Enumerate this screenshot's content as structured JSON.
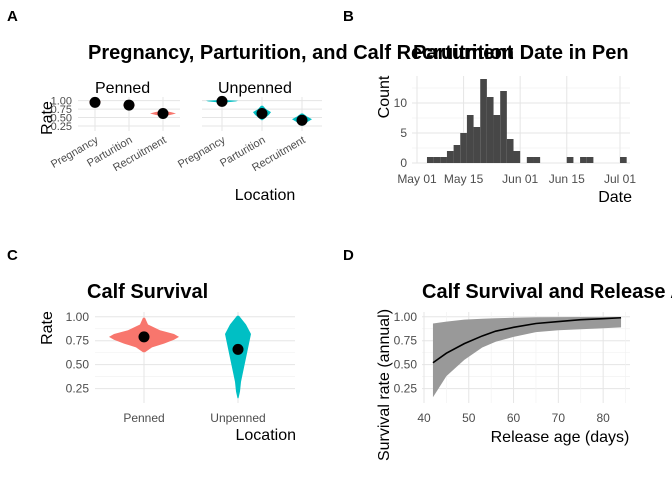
{
  "chart_data": [
    {
      "panel": "A",
      "type": "violin",
      "title": "Pregnancy, Parturition, and Calf Recruitment",
      "xlabel": "Location",
      "ylabel": "Rate",
      "facets": [
        "Penned",
        "Unpenned"
      ],
      "categories": [
        "Pregnancy",
        "Parturition",
        "Recruitment"
      ],
      "yticks": [
        "0.25",
        "0.50",
        "0.75",
        "1.00"
      ],
      "ylim": [
        0.1,
        1.05
      ],
      "colors": {
        "Penned": "#F8766D",
        "Unpenned": "#00BFC4"
      },
      "series": [
        {
          "name": "Penned",
          "values": [
            0.95,
            0.87,
            0.62
          ]
        },
        {
          "name": "Unpenned",
          "values": [
            0.98,
            0.62,
            0.42
          ]
        }
      ]
    },
    {
      "panel": "B",
      "type": "bar",
      "title": "Parturition Date in Pen",
      "xlabel": "Date",
      "ylabel": "Count",
      "xticks": [
        "May 01",
        "May 15",
        "Jun 01",
        "Jun 15",
        "Jul 01"
      ],
      "xtick_days": [
        0,
        14,
        31,
        45,
        61
      ],
      "yticks": [
        "0",
        "5",
        "10"
      ],
      "ylim": [
        0,
        14.5
      ],
      "bin_width_days": 2,
      "bins": [
        {
          "start_day": 3,
          "count": 1
        },
        {
          "start_day": 5,
          "count": 1
        },
        {
          "start_day": 7,
          "count": 1
        },
        {
          "start_day": 9,
          "count": 2
        },
        {
          "start_day": 11,
          "count": 3
        },
        {
          "start_day": 13,
          "count": 5
        },
        {
          "start_day": 15,
          "count": 8
        },
        {
          "start_day": 17,
          "count": 6
        },
        {
          "start_day": 19,
          "count": 14
        },
        {
          "start_day": 21,
          "count": 11
        },
        {
          "start_day": 23,
          "count": 8
        },
        {
          "start_day": 25,
          "count": 12
        },
        {
          "start_day": 27,
          "count": 4
        },
        {
          "start_day": 29,
          "count": 2
        },
        {
          "start_day": 31,
          "count": 0
        },
        {
          "start_day": 33,
          "count": 1
        },
        {
          "start_day": 35,
          "count": 1
        },
        {
          "start_day": 45,
          "count": 1
        },
        {
          "start_day": 49,
          "count": 1
        },
        {
          "start_day": 51,
          "count": 1
        },
        {
          "start_day": 61,
          "count": 1
        }
      ]
    },
    {
      "panel": "C",
      "type": "violin",
      "title": "Calf Survival",
      "xlabel": "Location",
      "ylabel": "Rate",
      "categories": [
        "Penned",
        "Unpenned"
      ],
      "yticks": [
        "0.25",
        "0.50",
        "0.75",
        "1.00"
      ],
      "ylim": [
        0.1,
        1.05
      ],
      "colors": {
        "Penned": "#F8766D",
        "Unpenned": "#00BFC4"
      },
      "values": [
        0.79,
        0.66
      ]
    },
    {
      "panel": "D",
      "type": "line",
      "title": "Calf Survival and Release Age",
      "xlabel": "Release age (days)",
      "ylabel": "Survival rate (annual)",
      "xticks": [
        "40",
        "50",
        "60",
        "70",
        "80"
      ],
      "yticks": [
        "0.25",
        "0.50",
        "0.75",
        "1.00"
      ],
      "xlim": [
        40,
        86
      ],
      "ylim": [
        0.1,
        1.05
      ],
      "x": [
        42,
        45,
        49,
        53,
        56,
        60,
        65,
        70,
        75,
        80,
        84
      ],
      "y": [
        0.52,
        0.62,
        0.72,
        0.8,
        0.85,
        0.89,
        0.93,
        0.95,
        0.97,
        0.98,
        0.99
      ],
      "y_low": [
        0.16,
        0.38,
        0.55,
        0.68,
        0.74,
        0.79,
        0.84,
        0.86,
        0.87,
        0.88,
        0.89
      ],
      "y_high": [
        0.93,
        0.95,
        0.97,
        0.98,
        0.985,
        0.99,
        0.995,
        0.997,
        0.998,
        0.999,
        0.999
      ]
    }
  ],
  "panel_letters": [
    "A",
    "B",
    "C",
    "D"
  ]
}
